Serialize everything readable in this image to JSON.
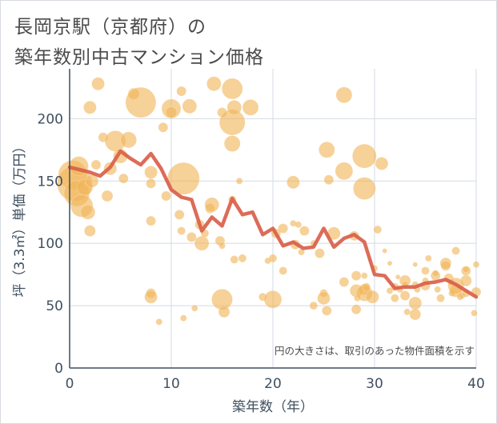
{
  "chart_data": {
    "type": "scatter",
    "title_lines": [
      "長岡京駅（京都府）の",
      "築年数別中古マンション価格"
    ],
    "xlabel": "築年数（年）",
    "ylabel": "坪（3.3㎡）単価（万円）",
    "xlim": [
      0,
      40
    ],
    "ylim": [
      0,
      240
    ],
    "xticks": [
      0,
      10,
      20,
      30,
      40
    ],
    "yticks": [
      0,
      50,
      100,
      150,
      200
    ],
    "grid": true,
    "annotation": "円の大きさは、取引のあった物件面積を示す",
    "colors": {
      "bubble": "#f0b558",
      "line": "#d9604a",
      "grid": "#d3dbe3",
      "axis": "#3f4f5f"
    },
    "series": [
      {
        "type": "bubble",
        "points": [
          [
            0.3,
            155,
            18
          ],
          [
            0.5,
            148,
            22
          ],
          [
            0.7,
            140,
            16
          ],
          [
            0.9,
            162,
            12
          ],
          [
            1.2,
            130,
            14
          ],
          [
            1.5,
            145,
            10
          ],
          [
            1.8,
            125,
            9
          ],
          [
            2,
            110,
            7
          ],
          [
            2.2,
            150,
            8
          ],
          [
            2.6,
            163,
            6
          ],
          [
            2.8,
            228,
            8
          ],
          [
            2,
            209,
            8
          ],
          [
            3.3,
            185,
            6
          ],
          [
            3.7,
            138,
            7
          ],
          [
            4,
            160,
            8
          ],
          [
            4.5,
            182,
            13
          ],
          [
            5,
            170,
            9
          ],
          [
            5.3,
            152,
            6
          ],
          [
            5.8,
            183,
            10
          ],
          [
            6.3,
            220,
            7
          ],
          [
            7,
            213,
            19
          ],
          [
            8,
            157,
            8
          ],
          [
            8,
            148,
            6
          ],
          [
            8,
            118,
            6
          ],
          [
            8,
            60,
            6
          ],
          [
            8,
            57,
            8
          ],
          [
            8.8,
            37,
            4
          ],
          [
            9.2,
            193,
            6
          ],
          [
            9.5,
            138,
            6
          ],
          [
            10,
            208,
            12
          ],
          [
            10,
            205,
            7
          ],
          [
            11,
            222,
            6
          ],
          [
            10.8,
            123,
            6
          ],
          [
            11.2,
            152,
            20
          ],
          [
            11,
            110,
            5
          ],
          [
            11.2,
            40,
            4
          ],
          [
            11.8,
            210,
            9
          ],
          [
            12,
            105,
            6
          ],
          [
            12.3,
            48,
            4
          ],
          [
            12.8,
            115,
            6
          ],
          [
            13,
            100,
            9
          ],
          [
            13.3,
            108,
            5
          ],
          [
            13.8,
            128,
            6
          ],
          [
            14,
            131,
            9
          ],
          [
            14.2,
            228,
            9
          ],
          [
            14.8,
            102,
            6
          ],
          [
            15,
            98,
            4
          ],
          [
            15,
            205,
            6
          ],
          [
            15,
            55,
            13
          ],
          [
            15.2,
            45,
            7
          ],
          [
            16,
            224,
            13
          ],
          [
            16,
            197,
            16
          ],
          [
            16.2,
            209,
            9
          ],
          [
            16,
            180,
            10
          ],
          [
            16,
            135,
            5
          ],
          [
            16.2,
            87,
            5
          ],
          [
            16.7,
            150,
            4
          ],
          [
            17,
            88,
            5
          ],
          [
            17.8,
            209,
            10
          ],
          [
            19,
            57,
            5
          ],
          [
            19.5,
            86,
            4
          ],
          [
            20,
            55,
            11
          ],
          [
            20,
            88,
            5
          ],
          [
            20.3,
            108,
            6
          ],
          [
            21,
            78,
            5
          ],
          [
            21,
            112,
            6
          ],
          [
            22,
            149,
            8
          ],
          [
            22,
            116,
            4
          ],
          [
            22.2,
            99,
            6
          ],
          [
            22.5,
            115,
            4
          ],
          [
            22.8,
            93,
            4
          ],
          [
            23.1,
            110,
            6
          ],
          [
            24,
            100,
            4
          ],
          [
            24,
            50,
            5
          ],
          [
            24.6,
            92,
            6
          ],
          [
            25,
            60,
            5
          ],
          [
            25,
            56,
            8
          ],
          [
            25.3,
            46,
            6
          ],
          [
            25.3,
            175,
            10
          ],
          [
            25.5,
            151,
            6
          ],
          [
            26,
            108,
            8
          ],
          [
            27,
            158,
            11
          ],
          [
            27,
            219,
            10
          ],
          [
            27,
            69,
            6
          ],
          [
            28,
            106,
            6
          ],
          [
            28.2,
            74,
            6
          ],
          [
            28.2,
            62,
            8
          ],
          [
            28.2,
            47,
            6
          ],
          [
            28.3,
            56,
            4
          ],
          [
            29,
            170,
            15
          ],
          [
            29,
            144,
            14
          ],
          [
            29,
            74,
            4
          ],
          [
            29,
            63,
            7
          ],
          [
            29,
            60,
            10
          ],
          [
            29.2,
            65,
            5
          ],
          [
            29.8,
            57,
            8
          ],
          [
            30,
            80,
            4
          ],
          [
            30.3,
            111,
            5
          ],
          [
            30.7,
            164,
            8
          ],
          [
            31,
            94,
            3
          ],
          [
            31.5,
            84,
            3
          ],
          [
            31.5,
            62,
            4
          ],
          [
            32,
            65,
            5
          ],
          [
            32,
            56,
            5
          ],
          [
            32.3,
            73,
            3
          ],
          [
            32.5,
            63,
            4
          ],
          [
            33,
            70,
            7
          ],
          [
            33,
            67,
            4
          ],
          [
            33,
            58,
            6
          ],
          [
            33.2,
            45,
            4
          ],
          [
            34,
            67,
            4
          ],
          [
            34,
            52,
            8
          ],
          [
            34,
            43,
            7
          ],
          [
            34.2,
            63,
            4
          ],
          [
            34,
            83,
            3
          ],
          [
            35,
            78,
            5
          ],
          [
            35,
            70,
            4
          ],
          [
            35,
            66,
            6
          ],
          [
            35.3,
            88,
            4
          ],
          [
            36,
            74,
            6
          ],
          [
            36,
            76,
            4
          ],
          [
            36.2,
            63,
            4
          ],
          [
            36.5,
            56,
            5
          ],
          [
            37,
            84,
            7
          ],
          [
            37,
            82,
            6
          ],
          [
            37.3,
            72,
            6
          ],
          [
            37.5,
            69,
            4
          ],
          [
            37.6,
            60,
            4
          ],
          [
            38,
            66,
            10
          ],
          [
            38,
            62,
            8
          ],
          [
            38,
            94,
            5
          ],
          [
            38.4,
            57,
            4
          ],
          [
            38.6,
            58,
            4
          ],
          [
            39,
            60,
            5
          ],
          [
            39,
            78,
            6
          ],
          [
            39,
            70,
            7
          ],
          [
            39,
            79,
            4
          ],
          [
            39.8,
            44,
            4
          ],
          [
            40,
            83,
            4
          ],
          [
            40,
            61,
            6
          ]
        ]
      },
      {
        "type": "line",
        "x": [
          0,
          1,
          2,
          3,
          4,
          5,
          6,
          7,
          8,
          9,
          10,
          11,
          12,
          13,
          14,
          15,
          16,
          17,
          18,
          19,
          20,
          21,
          22,
          23,
          24,
          25,
          26,
          27,
          28,
          29,
          30,
          31,
          32,
          33,
          34,
          35,
          36,
          37,
          38,
          39,
          40
        ],
        "y": [
          161,
          159,
          157,
          154,
          161,
          174,
          168,
          163,
          172,
          160,
          143,
          137,
          135,
          110,
          121,
          114,
          136,
          123,
          125,
          107,
          112,
          98,
          101,
          96,
          97,
          112,
          97,
          104,
          107,
          101,
          75,
          74,
          64,
          65,
          65,
          68,
          69,
          71,
          67,
          62,
          57
        ]
      }
    ]
  }
}
